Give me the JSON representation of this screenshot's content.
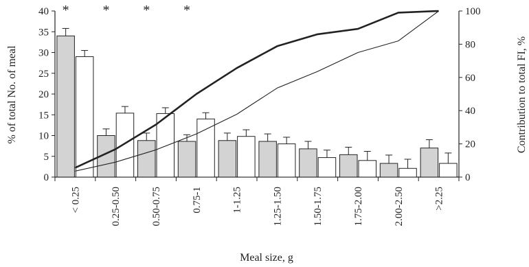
{
  "chart_data": {
    "type": "bar",
    "categories": [
      "< 0.25",
      "0.25-0.50",
      "0.50-0.75",
      "0.75-1",
      "1-1.25",
      "1.25-1.50",
      "1.50-1.75",
      "1.75-2.00",
      "2.00-2.50",
      ">2.25"
    ],
    "xlabel": "Meal size, g",
    "ylabel": "% of total No. of meal",
    "ylabel_right": "Contribution to total FI, %",
    "ylim": [
      0,
      40
    ],
    "ylim_right": [
      0,
      100
    ],
    "yticks": [
      "0",
      "5",
      "10",
      "15",
      "20",
      "25",
      "30",
      "35",
      "40"
    ],
    "yticks_right": [
      "0",
      "20",
      "40",
      "60",
      "80",
      "100"
    ],
    "series": [
      {
        "kind": "bar",
        "color": "#d3d3d3",
        "values": [
          34.0,
          10.0,
          8.8,
          8.6,
          8.8,
          8.6,
          6.8,
          5.4,
          3.3,
          7.0
        ],
        "errors": [
          1.8,
          1.6,
          1.8,
          1.6,
          1.8,
          1.8,
          1.8,
          1.8,
          2.0,
          2.0
        ]
      },
      {
        "kind": "bar",
        "color": "#ffffff",
        "values": [
          29.0,
          15.4,
          15.3,
          14.0,
          9.8,
          8.0,
          4.7,
          4.0,
          2.1,
          3.3
        ],
        "errors": [
          1.5,
          1.6,
          1.4,
          1.5,
          1.6,
          1.6,
          1.8,
          2.2,
          2.2,
          2.5
        ]
      },
      {
        "kind": "line",
        "axis": "right",
        "style": "thick",
        "values": [
          5.6,
          16.8,
          31.6,
          50.0,
          65.6,
          78.8,
          86.0,
          89.2,
          99.0,
          100.0
        ]
      },
      {
        "kind": "line",
        "axis": "right",
        "style": "thin",
        "values": [
          3.6,
          9.0,
          16.4,
          26.0,
          37.8,
          53.6,
          63.6,
          75.0,
          82.0,
          100.0
        ]
      }
    ],
    "significance": [
      "*",
      "*",
      "*",
      "*",
      "",
      "",
      "",
      "",
      "",
      ""
    ],
    "colors": {
      "axis": "#222222",
      "bar_outline": "#222222"
    }
  }
}
